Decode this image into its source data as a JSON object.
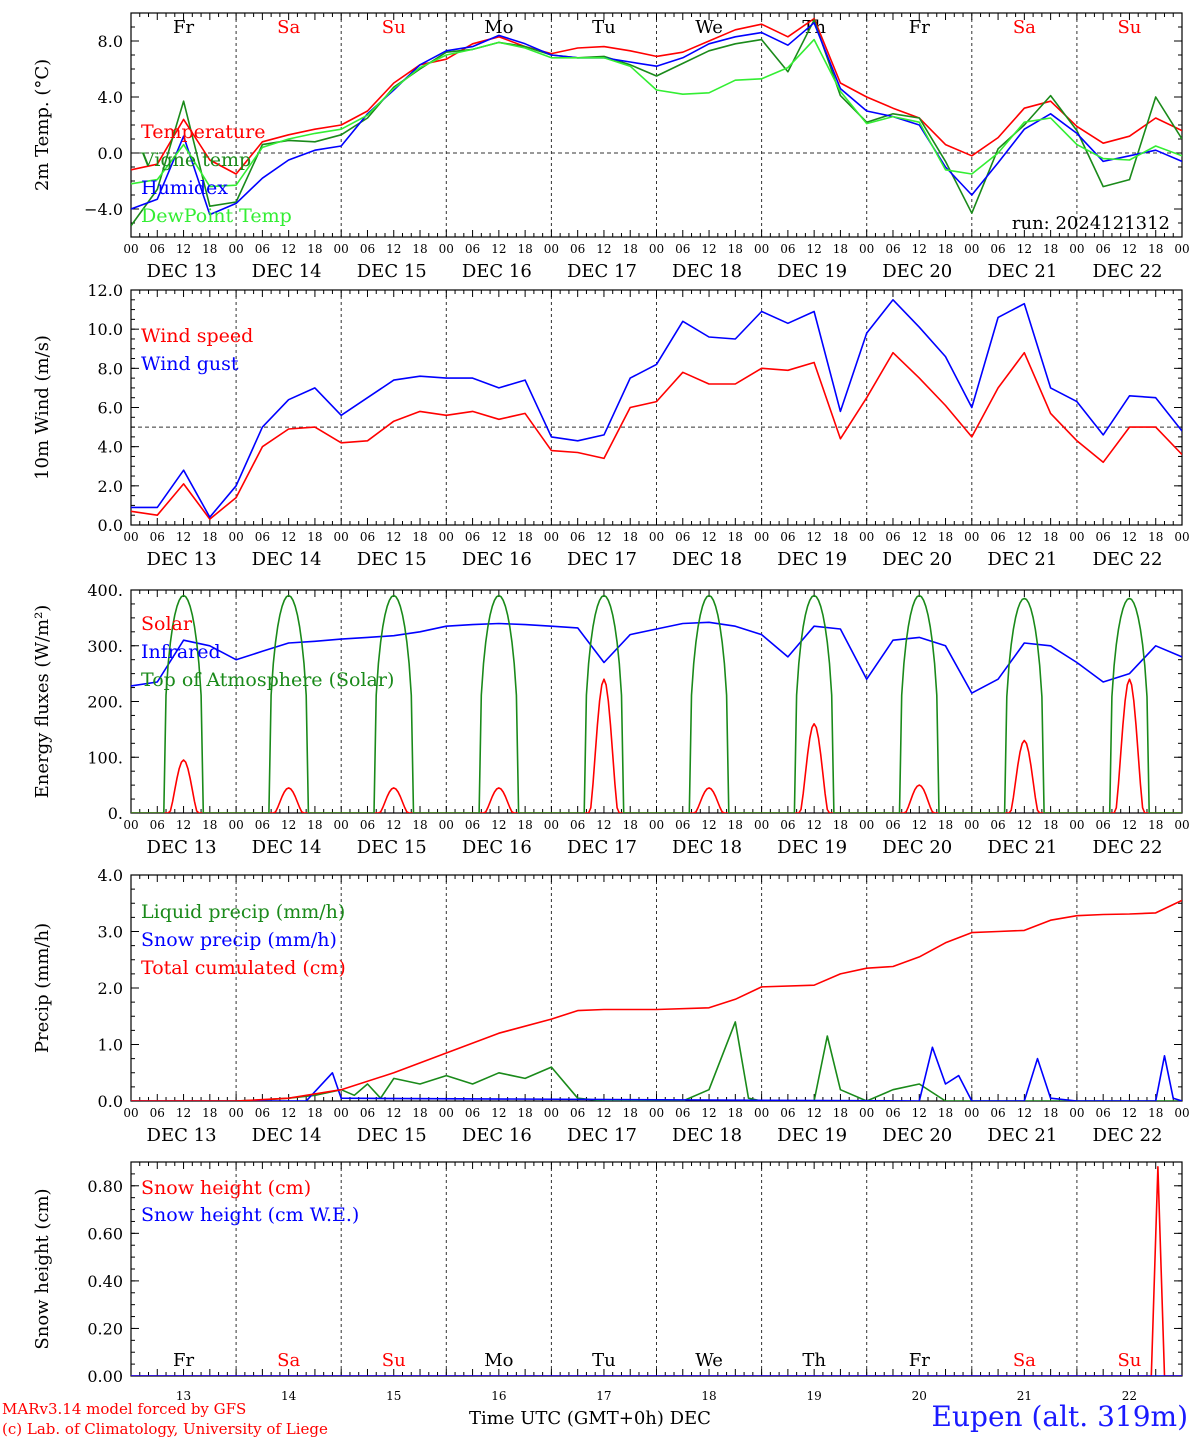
{
  "chart_data": [
    {
      "type": "line",
      "ylabel": "2m Temp. (°C)",
      "ylim": [
        -6,
        10
      ],
      "yticks": [
        "8.0",
        "4.0",
        "0.0",
        "−4.0"
      ],
      "ytick_values": [
        8,
        4,
        0,
        -4
      ],
      "reference_line": 0,
      "x_hours": [
        0,
        6,
        12,
        18,
        24,
        30,
        36,
        42,
        48,
        54,
        60,
        66,
        72,
        78,
        84,
        90,
        96,
        102,
        108,
        114,
        120,
        126,
        132,
        138,
        144,
        150,
        156,
        162,
        168,
        174,
        180,
        186,
        192,
        198,
        204,
        210,
        216,
        222,
        228,
        234,
        240
      ],
      "series": [
        {
          "name": "Temperature",
          "color": "#ff0000",
          "values": [
            -1.2,
            -0.8,
            2.4,
            -0.5,
            -1.5,
            0.8,
            1.3,
            1.7,
            2.0,
            3.0,
            5.0,
            6.3,
            6.7,
            7.8,
            8.3,
            7.6,
            7.1,
            7.5,
            7.6,
            7.3,
            6.9,
            7.2,
            8.0,
            8.8,
            9.2,
            8.3,
            9.6,
            5.0,
            4.0,
            3.2,
            2.5,
            0.6,
            -0.2,
            1.1,
            3.2,
            3.7,
            1.9,
            0.7,
            1.2,
            2.5,
            1.6
          ]
        },
        {
          "name": "Vigne temp",
          "color": "#1a8a1a",
          "values": [
            -5.2,
            -2.6,
            3.7,
            -3.8,
            -3.5,
            0.6,
            0.9,
            0.8,
            1.3,
            2.5,
            4.7,
            6.0,
            7.2,
            7.4,
            7.9,
            7.6,
            7.0,
            6.8,
            6.9,
            6.3,
            5.5,
            6.4,
            7.3,
            7.8,
            8.1,
            5.8,
            9.5,
            4.1,
            2.2,
            2.8,
            2.5,
            -0.6,
            -4.3,
            0.3,
            2.0,
            4.1,
            1.6,
            -2.4,
            -1.9,
            4.0,
            1.0
          ]
        },
        {
          "name": "Humidex",
          "color": "#0000ff",
          "values": [
            -4.0,
            -3.3,
            1.2,
            -4.4,
            -3.6,
            -1.8,
            -0.5,
            0.2,
            0.5,
            2.8,
            4.5,
            6.3,
            7.3,
            7.6,
            8.4,
            7.8,
            7.0,
            6.8,
            6.8,
            6.5,
            6.2,
            6.8,
            7.8,
            8.3,
            8.6,
            7.7,
            9.3,
            4.6,
            3.0,
            2.6,
            2.0,
            -1.0,
            -3.0,
            -0.7,
            1.7,
            2.8,
            1.4,
            -0.6,
            -0.2,
            0.2,
            -0.6
          ]
        },
        {
          "name": "DewPoint Temp",
          "color": "#33ee33",
          "values": [
            -2.2,
            -1.9,
            0.6,
            -2.4,
            -2.3,
            0.4,
            1.0,
            1.4,
            1.7,
            2.7,
            4.6,
            6.1,
            7.0,
            7.4,
            7.9,
            7.5,
            6.8,
            6.8,
            6.8,
            6.2,
            4.5,
            4.2,
            4.3,
            5.2,
            5.3,
            6.1,
            8.1,
            4.4,
            2.1,
            2.6,
            2.2,
            -1.2,
            -1.5,
            0.0,
            2.2,
            2.5,
            0.6,
            -0.4,
            -0.5,
            0.5,
            -0.2
          ]
        }
      ],
      "annotation": "run: 2024121312",
      "day_names": [
        "Fr",
        "Sa",
        "Su",
        "Mo",
        "Tu",
        "We",
        "Th",
        "Fr",
        "Sa",
        "Su"
      ],
      "weekend_days": [
        1,
        2,
        8,
        9
      ]
    },
    {
      "type": "line",
      "ylabel": "10m Wind (m/s)",
      "ylim": [
        0,
        12
      ],
      "yticks": [
        "12.0",
        "10.0",
        "8.0",
        "6.0",
        "4.0",
        "2.0",
        "0.0"
      ],
      "ytick_values": [
        12,
        10,
        8,
        6,
        4,
        2,
        0
      ],
      "reference_line": 5,
      "x_hours": [
        0,
        6,
        12,
        18,
        24,
        30,
        36,
        42,
        48,
        54,
        60,
        66,
        72,
        78,
        84,
        90,
        96,
        102,
        108,
        114,
        120,
        126,
        132,
        138,
        144,
        150,
        156,
        162,
        168,
        174,
        180,
        186,
        192,
        198,
        204,
        210,
        216,
        222,
        228,
        234,
        240
      ],
      "series": [
        {
          "name": "Wind speed",
          "color": "#ff0000",
          "values": [
            0.7,
            0.5,
            2.1,
            0.3,
            1.4,
            4.0,
            4.9,
            5.0,
            4.2,
            4.3,
            5.3,
            5.8,
            5.6,
            5.8,
            5.4,
            5.7,
            3.8,
            3.7,
            3.4,
            6.0,
            6.3,
            7.8,
            7.2,
            7.2,
            8.0,
            7.9,
            8.3,
            4.4,
            6.5,
            8.8,
            7.5,
            6.1,
            4.5,
            7.0,
            8.8,
            5.7,
            4.3,
            3.2,
            5.0,
            5.0,
            3.6
          ]
        },
        {
          "name": "Wind gust",
          "color": "#0000ff",
          "values": [
            0.9,
            0.9,
            2.8,
            0.4,
            2.0,
            5.0,
            6.4,
            7.0,
            5.6,
            6.5,
            7.4,
            7.6,
            7.5,
            7.5,
            7.0,
            7.4,
            4.5,
            4.3,
            4.6,
            7.5,
            8.2,
            10.4,
            9.6,
            9.5,
            10.9,
            10.3,
            10.9,
            5.8,
            9.8,
            11.5,
            10.1,
            8.6,
            6.0,
            10.6,
            11.3,
            7.0,
            6.3,
            4.6,
            6.6,
            6.5,
            4.8
          ]
        }
      ]
    },
    {
      "type": "line",
      "ylabel": "Energy fluxes (W/m²)",
      "ylim": [
        0,
        400
      ],
      "yticks": [
        "400.",
        "300.",
        "200.",
        "100.",
        "0."
      ],
      "ytick_values": [
        400,
        300,
        200,
        100,
        0
      ],
      "series": [
        {
          "name": "Solar",
          "color": "#ff0000",
          "daily_peaks": [
            95,
            45,
            45,
            45,
            240,
            45,
            160,
            50,
            130,
            240
          ]
        },
        {
          "name": "Infrared",
          "color": "#0000ff",
          "x_hours": [
            0,
            6,
            12,
            18,
            24,
            30,
            36,
            42,
            48,
            54,
            60,
            66,
            72,
            78,
            84,
            90,
            96,
            102,
            108,
            114,
            120,
            126,
            132,
            138,
            144,
            150,
            156,
            162,
            168,
            174,
            180,
            186,
            192,
            198,
            204,
            210,
            216,
            222,
            228,
            234,
            240
          ],
          "values": [
            228,
            235,
            310,
            300,
            275,
            290,
            305,
            308,
            312,
            315,
            318,
            325,
            335,
            338,
            340,
            338,
            335,
            332,
            270,
            320,
            330,
            340,
            342,
            335,
            320,
            280,
            335,
            330,
            240,
            310,
            315,
            300,
            215,
            240,
            305,
            300,
            270,
            235,
            250,
            300,
            280
          ]
        },
        {
          "name": "Top of Atmosphere (Solar)",
          "color": "#1a8a1a",
          "daily_peaks": [
            390,
            390,
            390,
            390,
            390,
            390,
            390,
            390,
            385,
            385
          ]
        }
      ]
    },
    {
      "type": "line",
      "ylabel": "Precip (mm/h)",
      "ylim": [
        0,
        4
      ],
      "yticks": [
        "4.0",
        "3.0",
        "2.0",
        "1.0",
        "0.0"
      ],
      "ytick_values": [
        4,
        3,
        2,
        1,
        0
      ],
      "series": [
        {
          "name": "Liquid precip (mm/h)",
          "color": "#1a8a1a",
          "x_hours": [
            0,
            24,
            30,
            36,
            42,
            48,
            51,
            54,
            57,
            60,
            66,
            72,
            78,
            84,
            90,
            96,
            102,
            108,
            114,
            120,
            126,
            132,
            138,
            141,
            144,
            150,
            156,
            159,
            162,
            168,
            174,
            180,
            186,
            192,
            198,
            204,
            210,
            216,
            222,
            228,
            234,
            240
          ],
          "values": [
            0,
            0,
            0.02,
            0.05,
            0.1,
            0.2,
            0.1,
            0.3,
            0.05,
            0.4,
            0.3,
            0.45,
            0.3,
            0.5,
            0.4,
            0.6,
            0.05,
            0,
            0,
            0,
            0,
            0.2,
            1.4,
            0.05,
            0,
            0,
            0,
            1.15,
            0.2,
            0,
            0.2,
            0.3,
            0,
            0,
            0,
            0,
            0,
            0,
            0,
            0,
            0,
            0
          ]
        },
        {
          "name": "Snow precip (mm/h)",
          "color": "#0000ff",
          "x_hours": [
            0,
            40,
            46,
            48,
            180,
            183,
            186,
            189,
            192,
            204,
            207,
            210,
            216,
            234,
            236,
            238,
            240
          ],
          "values": [
            0,
            0,
            0.5,
            0.05,
            0,
            0.95,
            0.3,
            0.45,
            0,
            0,
            0.75,
            0.05,
            0,
            0,
            0.8,
            0.05,
            0
          ]
        },
        {
          "name": "Total cumulated (cm)",
          "color": "#ff0000",
          "x_hours": [
            0,
            24,
            36,
            48,
            60,
            72,
            84,
            96,
            102,
            108,
            120,
            132,
            138,
            144,
            156,
            162,
            168,
            174,
            180,
            186,
            192,
            198,
            204,
            210,
            216,
            222,
            228,
            234,
            240
          ],
          "values": [
            0,
            0,
            0.05,
            0.2,
            0.5,
            0.85,
            1.2,
            1.45,
            1.6,
            1.62,
            1.62,
            1.65,
            1.8,
            2.02,
            2.05,
            2.25,
            2.35,
            2.38,
            2.55,
            2.8,
            2.98,
            3.0,
            3.02,
            3.2,
            3.28,
            3.3,
            3.31,
            3.33,
            3.55
          ]
        }
      ]
    },
    {
      "type": "line",
      "ylabel": "Snow height (cm)",
      "ylim": [
        0,
        0.9
      ],
      "yticks": [
        "0.80",
        "0.60",
        "0.40",
        "0.20",
        "0.00"
      ],
      "ytick_values": [
        0.8,
        0.6,
        0.4,
        0.2,
        0
      ],
      "series": [
        {
          "name": "Snow height (cm)",
          "color": "#ff0000",
          "x_hours": [
            0,
            233,
            234.5,
            236,
            240
          ],
          "values": [
            0,
            0,
            0.88,
            0,
            0
          ]
        },
        {
          "name": "Snow height (cm W.E.)",
          "color": "#0000ff",
          "x_hours": [
            0,
            240
          ],
          "values": [
            0,
            0
          ]
        }
      ],
      "day_names": [
        "Fr",
        "Sa",
        "Su",
        "Mo",
        "Tu",
        "We",
        "Th",
        "Fr",
        "Sa",
        "Su"
      ],
      "day_numbers": [
        "13",
        "14",
        "15",
        "16",
        "17",
        "18",
        "19",
        "20",
        "21",
        "22"
      ],
      "weekend_days": [
        1,
        2,
        8,
        9
      ],
      "xlabel": "Time UTC (GMT+0h) DEC"
    }
  ],
  "x_axis": {
    "hour_labels": [
      "00",
      "06",
      "12",
      "18"
    ],
    "final_hour_label": "00",
    "date_labels": [
      "DEC 13",
      "DEC 14",
      "DEC 15",
      "DEC 16",
      "DEC 17",
      "DEC 18",
      "DEC 19",
      "DEC 20",
      "DEC 21",
      "DEC 22"
    ]
  },
  "colors": {
    "weekday": "#000000",
    "weekend": "#ff0000",
    "grid": "#333333"
  },
  "footer": {
    "credit_line_1": "MARv3.14 model forced by GFS",
    "credit_line_2": "(c) Lab. of Climatology, University of Liege",
    "station": "Eupen (alt. 319m)"
  }
}
